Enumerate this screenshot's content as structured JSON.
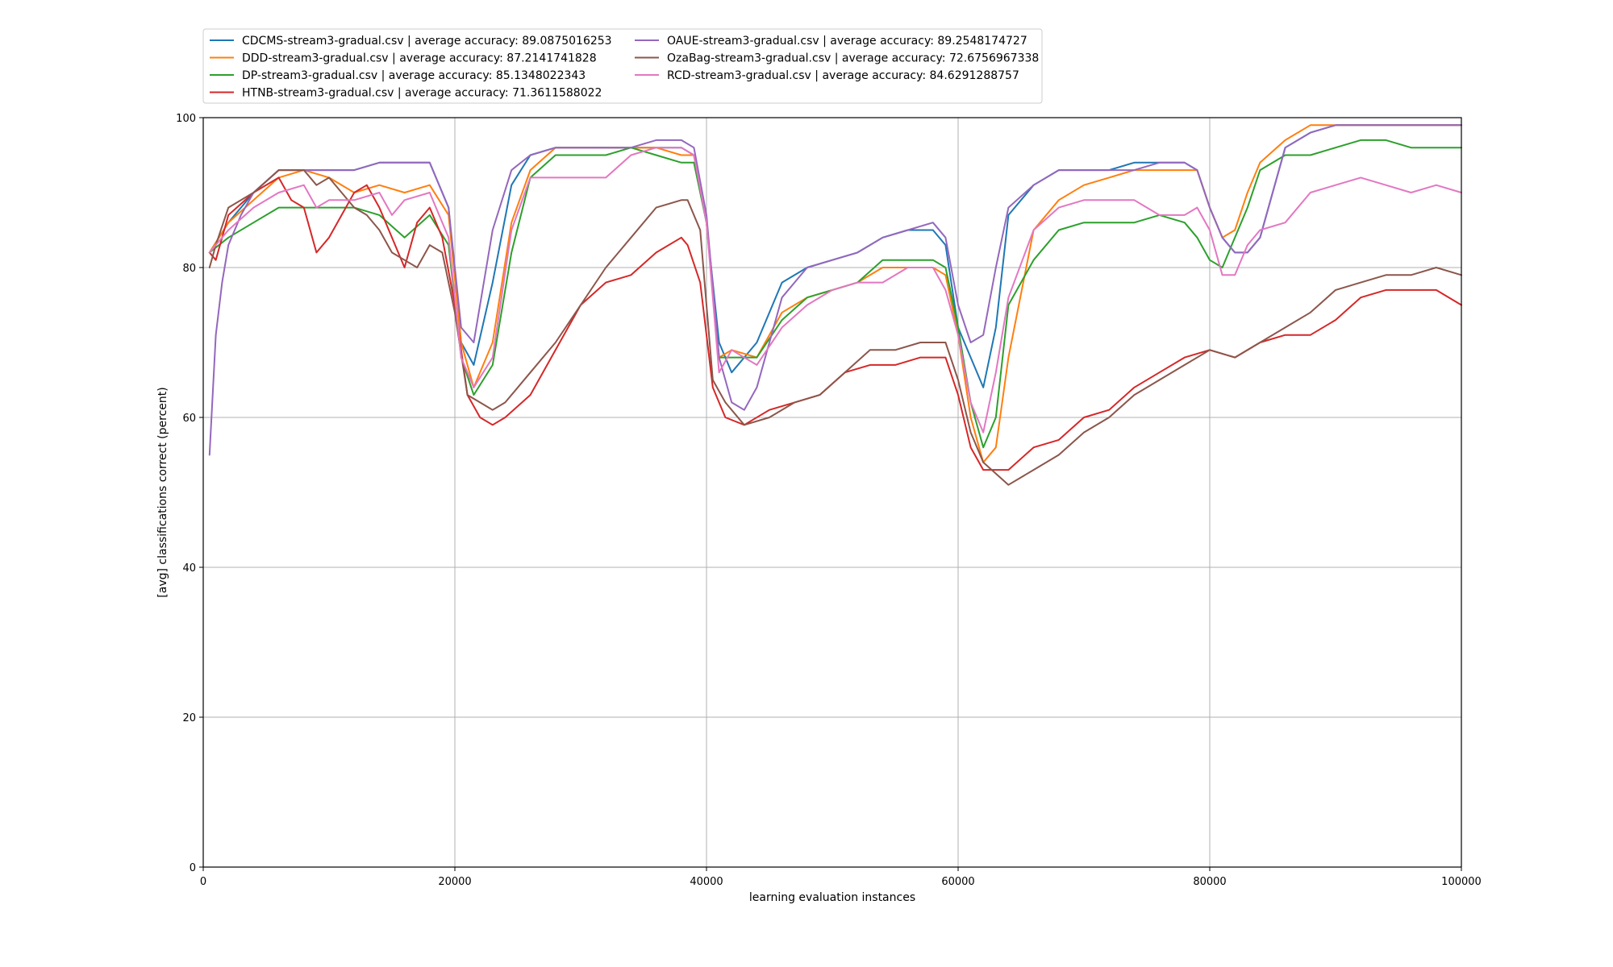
{
  "chart_data": {
    "type": "line",
    "title": "",
    "xlabel": "learning evaluation instances",
    "ylabel": "[avg] classifications correct (percent)",
    "xlim": [
      0,
      100000
    ],
    "ylim": [
      0,
      100
    ],
    "xticks": [
      0,
      20000,
      40000,
      60000,
      80000,
      100000
    ],
    "yticks": [
      0,
      20,
      40,
      60,
      80,
      100
    ],
    "grid": true,
    "legend_placement": "top-left, above plot, 2 columns",
    "series": [
      {
        "name": "CDCMS-stream3-gradual.csv | average accuracy: 89.0875016253",
        "color": "#1f77b4",
        "x": [
          500,
          2000,
          4000,
          6000,
          8000,
          10000,
          12000,
          14000,
          16000,
          18000,
          19500,
          20500,
          21500,
          23000,
          24500,
          26000,
          28000,
          30000,
          32000,
          34000,
          36000,
          38000,
          39000,
          40000,
          41000,
          42000,
          44000,
          46000,
          48000,
          50000,
          52000,
          54000,
          56000,
          58000,
          59000,
          60000,
          61000,
          62000,
          63000,
          64000,
          66000,
          68000,
          70000,
          72000,
          74000,
          76000,
          78000,
          79000,
          80000,
          81000,
          82000,
          83000,
          84000,
          86000,
          88000,
          90000,
          92000,
          94000,
          96000,
          98000,
          100000
        ],
        "y": [
          82,
          86,
          90,
          93,
          93,
          93,
          93,
          94,
          94,
          94,
          88,
          70,
          67,
          78,
          91,
          95,
          96,
          96,
          96,
          96,
          96,
          96,
          95,
          86,
          70,
          66,
          70,
          78,
          80,
          81,
          82,
          84,
          85,
          85,
          83,
          72,
          68,
          64,
          72,
          87,
          91,
          93,
          93,
          93,
          94,
          94,
          94,
          93,
          88,
          84,
          82,
          82,
          84,
          96,
          98,
          99,
          99,
          99,
          99,
          99,
          99
        ]
      },
      {
        "name": "DDD-stream3-gradual.csv | average accuracy: 87.2141741828",
        "color": "#ff7f0e",
        "x": [
          500,
          2000,
          4000,
          6000,
          8000,
          10000,
          12000,
          14000,
          16000,
          18000,
          19500,
          20500,
          21500,
          23000,
          24500,
          26000,
          28000,
          30000,
          32000,
          34000,
          36000,
          38000,
          39000,
          40000,
          41000,
          42000,
          44000,
          46000,
          48000,
          50000,
          52000,
          54000,
          56000,
          58000,
          59000,
          60000,
          61000,
          62000,
          63000,
          64000,
          66000,
          68000,
          70000,
          72000,
          74000,
          76000,
          78000,
          79000,
          80000,
          81000,
          82000,
          83000,
          84000,
          86000,
          88000,
          90000,
          92000,
          94000,
          96000,
          98000,
          100000
        ],
        "y": [
          82,
          86,
          89,
          92,
          93,
          92,
          90,
          91,
          90,
          91,
          87,
          70,
          64,
          70,
          86,
          93,
          96,
          96,
          96,
          96,
          96,
          95,
          95,
          86,
          68,
          69,
          68,
          74,
          76,
          77,
          78,
          80,
          80,
          80,
          79,
          71,
          60,
          54,
          56,
          68,
          85,
          89,
          91,
          92,
          93,
          93,
          93,
          93,
          88,
          84,
          85,
          90,
          94,
          97,
          99,
          99,
          99,
          99,
          99,
          99,
          99
        ]
      },
      {
        "name": "DP-stream3-gradual.csv | average accuracy: 85.1348022343",
        "color": "#2ca02c",
        "x": [
          500,
          2000,
          4000,
          6000,
          8000,
          10000,
          12000,
          14000,
          16000,
          18000,
          19500,
          20500,
          21500,
          23000,
          24500,
          26000,
          28000,
          30000,
          32000,
          34000,
          36000,
          38000,
          39000,
          40000,
          41000,
          42000,
          44000,
          46000,
          48000,
          50000,
          52000,
          54000,
          56000,
          58000,
          59000,
          60000,
          61000,
          62000,
          63000,
          64000,
          66000,
          68000,
          70000,
          72000,
          74000,
          76000,
          78000,
          79000,
          80000,
          81000,
          82000,
          83000,
          84000,
          86000,
          88000,
          90000,
          92000,
          94000,
          96000,
          98000,
          100000
        ],
        "y": [
          82,
          84,
          86,
          88,
          88,
          88,
          88,
          87,
          84,
          87,
          83,
          68,
          63,
          67,
          82,
          92,
          95,
          95,
          95,
          96,
          95,
          94,
          94,
          86,
          68,
          68,
          68,
          73,
          76,
          77,
          78,
          81,
          81,
          81,
          80,
          72,
          62,
          56,
          60,
          75,
          81,
          85,
          86,
          86,
          86,
          87,
          86,
          84,
          81,
          80,
          84,
          88,
          93,
          95,
          95,
          96,
          97,
          97,
          96,
          96,
          96
        ]
      },
      {
        "name": "HTNB-stream3-gradual.csv | average accuracy: 71.3611588022",
        "color": "#d62728",
        "x": [
          500,
          1000,
          2000,
          4000,
          6000,
          7000,
          8000,
          9000,
          10000,
          11000,
          12000,
          13000,
          14000,
          15000,
          16000,
          17000,
          18000,
          19000,
          20000,
          21000,
          22000,
          23000,
          24000,
          26000,
          28000,
          30000,
          32000,
          34000,
          36000,
          38000,
          38500,
          39500,
          40500,
          41500,
          43000,
          45000,
          47000,
          49000,
          51000,
          53000,
          55000,
          57000,
          59000,
          60000,
          61000,
          62000,
          64000,
          66000,
          68000,
          70000,
          72000,
          74000,
          76000,
          78000,
          80000,
          82000,
          84000,
          86000,
          88000,
          90000,
          92000,
          94000,
          96000,
          98000,
          100000
        ],
        "y": [
          82,
          81,
          87,
          90,
          92,
          89,
          88,
          82,
          84,
          87,
          90,
          91,
          88,
          84,
          80,
          86,
          88,
          84,
          75,
          63,
          60,
          59,
          60,
          63,
          69,
          75,
          78,
          79,
          82,
          84,
          83,
          78,
          64,
          60,
          59,
          61,
          62,
          63,
          66,
          67,
          67,
          68,
          68,
          63,
          56,
          53,
          53,
          56,
          57,
          60,
          61,
          64,
          66,
          68,
          69,
          68,
          70,
          71,
          71,
          73,
          76,
          77,
          77,
          77,
          75
        ]
      },
      {
        "name": "OAUE-stream3-gradual.csv | average accuracy: 89.2548174727",
        "color": "#9467bd",
        "x": [
          500,
          1000,
          1500,
          2000,
          3000,
          4000,
          6000,
          8000,
          10000,
          12000,
          14000,
          16000,
          18000,
          19500,
          20500,
          21500,
          23000,
          24500,
          26000,
          28000,
          30000,
          32000,
          34000,
          36000,
          38000,
          39000,
          40000,
          41000,
          42000,
          43000,
          44000,
          46000,
          48000,
          50000,
          52000,
          54000,
          56000,
          58000,
          59000,
          60000,
          61000,
          62000,
          63000,
          64000,
          66000,
          68000,
          70000,
          72000,
          74000,
          76000,
          78000,
          79000,
          80000,
          81000,
          82000,
          83000,
          84000,
          86000,
          88000,
          90000,
          92000,
          94000,
          96000,
          98000,
          100000
        ],
        "y": [
          55,
          71,
          78,
          83,
          87,
          90,
          93,
          93,
          93,
          93,
          94,
          94,
          94,
          88,
          72,
          70,
          85,
          93,
          95,
          96,
          96,
          96,
          96,
          97,
          97,
          96,
          87,
          68,
          62,
          61,
          64,
          76,
          80,
          81,
          82,
          84,
          85,
          86,
          84,
          75,
          70,
          71,
          80,
          88,
          91,
          93,
          93,
          93,
          93,
          94,
          94,
          93,
          88,
          84,
          82,
          82,
          84,
          96,
          98,
          99,
          99,
          99,
          99,
          99,
          99
        ]
      },
      {
        "name": "OzaBag-stream3-gradual.csv | average accuracy: 72.6756967338",
        "color": "#8c564b",
        "x": [
          500,
          1000,
          2000,
          4000,
          6000,
          7000,
          8000,
          9000,
          10000,
          11000,
          12000,
          13000,
          14000,
          15000,
          16000,
          17000,
          18000,
          19000,
          20000,
          21000,
          22000,
          23000,
          24000,
          26000,
          28000,
          30000,
          32000,
          34000,
          36000,
          38000,
          38500,
          39500,
          40500,
          41500,
          43000,
          45000,
          47000,
          49000,
          51000,
          53000,
          55000,
          57000,
          59000,
          60000,
          61000,
          62000,
          64000,
          66000,
          68000,
          70000,
          72000,
          74000,
          76000,
          78000,
          80000,
          82000,
          84000,
          86000,
          88000,
          90000,
          92000,
          94000,
          96000,
          98000,
          100000
        ],
        "y": [
          80,
          83,
          88,
          90,
          93,
          93,
          93,
          91,
          92,
          90,
          88,
          87,
          85,
          82,
          81,
          80,
          83,
          82,
          74,
          63,
          62,
          61,
          62,
          66,
          70,
          75,
          80,
          84,
          88,
          89,
          89,
          85,
          65,
          62,
          59,
          60,
          62,
          63,
          66,
          69,
          69,
          70,
          70,
          65,
          58,
          54,
          51,
          53,
          55,
          58,
          60,
          63,
          65,
          67,
          69,
          68,
          70,
          72,
          74,
          77,
          78,
          79,
          79,
          80,
          79
        ]
      },
      {
        "name": "RCD-stream3-gradual.csv | average accuracy: 84.6291288757",
        "color": "#e377c2",
        "x": [
          500,
          2000,
          4000,
          6000,
          8000,
          9000,
          10000,
          12000,
          14000,
          15000,
          16000,
          18000,
          19500,
          20500,
          21500,
          23000,
          24500,
          26000,
          28000,
          30000,
          32000,
          34000,
          36000,
          38000,
          39000,
          40000,
          41000,
          42000,
          44000,
          46000,
          48000,
          50000,
          52000,
          54000,
          56000,
          58000,
          59000,
          60000,
          61000,
          62000,
          63000,
          64000,
          66000,
          68000,
          70000,
          72000,
          74000,
          76000,
          78000,
          79000,
          80000,
          81000,
          82000,
          83000,
          84000,
          86000,
          88000,
          90000,
          92000,
          94000,
          96000,
          98000,
          100000
        ],
        "y": [
          82,
          85,
          88,
          90,
          91,
          88,
          89,
          89,
          90,
          87,
          89,
          90,
          84,
          68,
          64,
          68,
          85,
          92,
          92,
          92,
          92,
          95,
          96,
          96,
          95,
          86,
          66,
          69,
          67,
          72,
          75,
          77,
          78,
          78,
          80,
          80,
          77,
          71,
          62,
          58,
          66,
          76,
          85,
          88,
          89,
          89,
          89,
          87,
          87,
          88,
          85,
          79,
          79,
          83,
          85,
          86,
          90,
          91,
          92,
          91,
          90,
          91,
          90
        ]
      }
    ]
  }
}
